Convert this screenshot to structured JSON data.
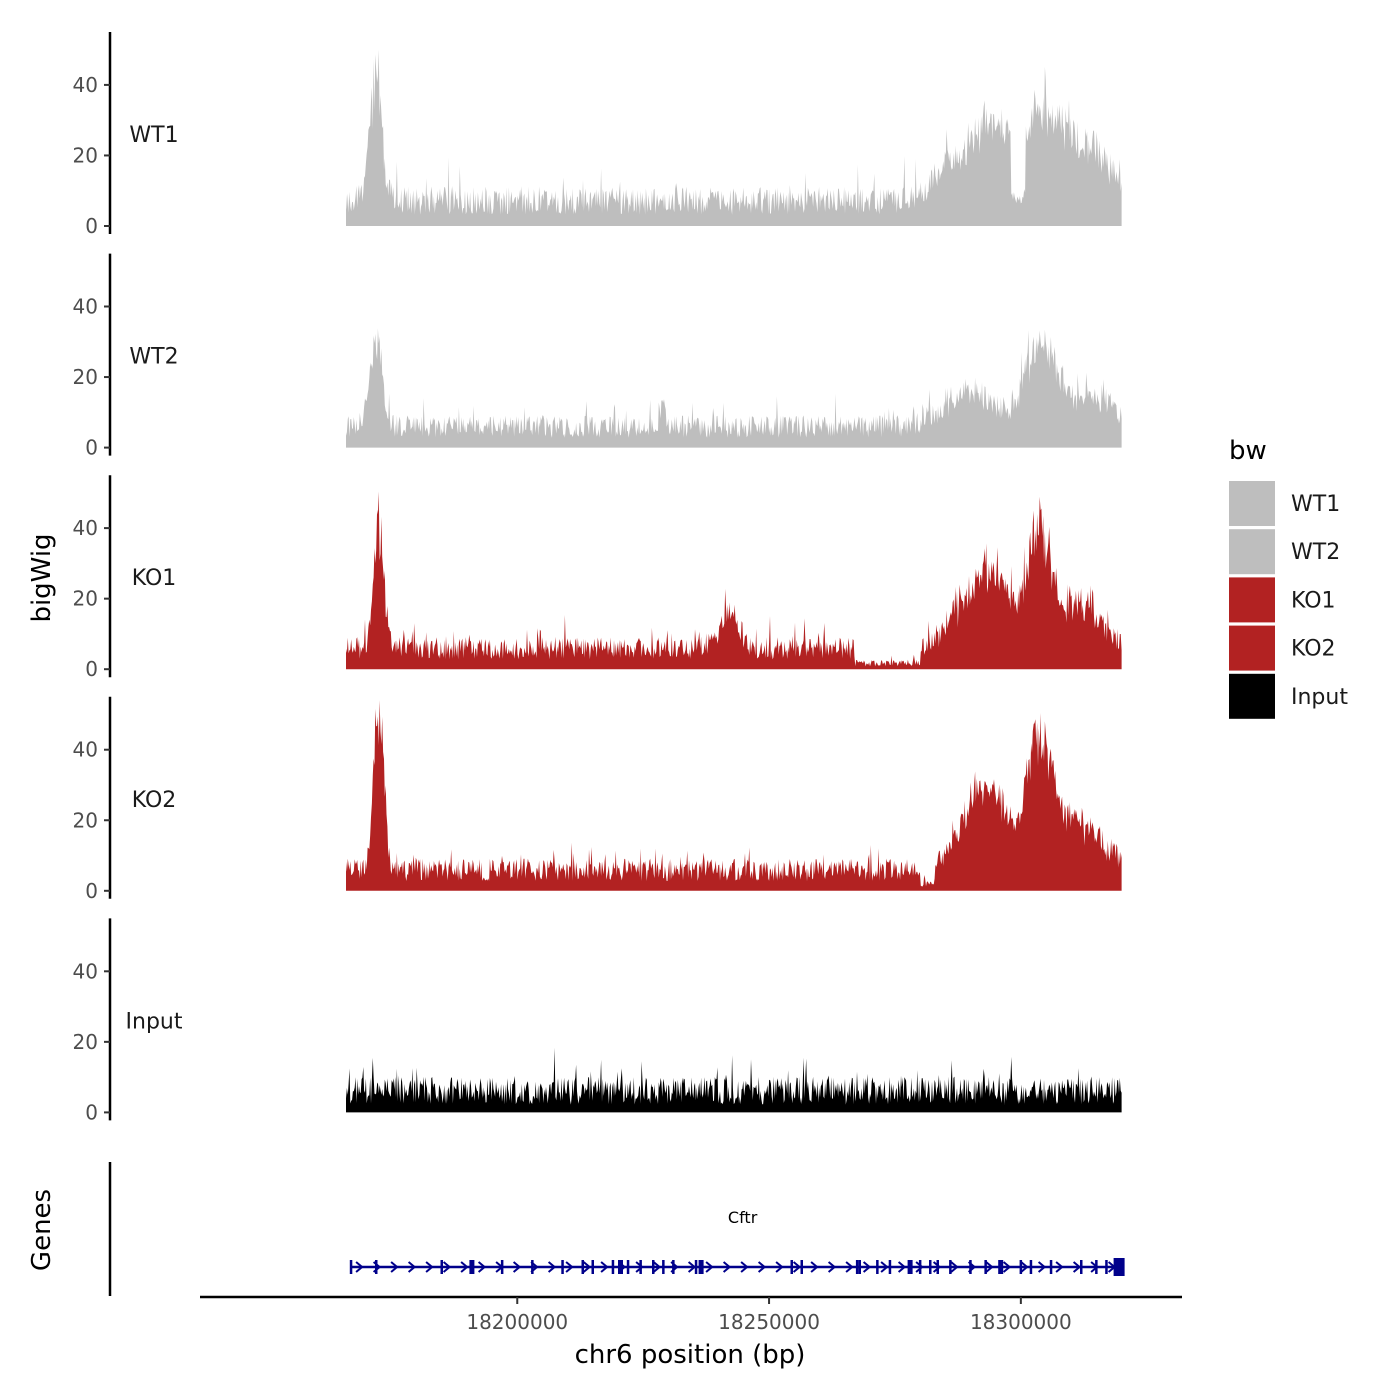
{
  "chart_data": {
    "type": "area",
    "x_axis": {
      "label": "chr6 position (bp)",
      "range": [
        18137000,
        18332000
      ],
      "data_range": [
        18166000,
        18320000
      ],
      "ticks": [
        18200000,
        18250000,
        18300000
      ],
      "tick_labels": [
        "18200000",
        "18250000",
        "18300000"
      ]
    },
    "y_axis": {
      "label": "bigWig",
      "range": [
        0,
        55
      ],
      "ticks": [
        0,
        20,
        40
      ],
      "tick_labels": [
        "0",
        "20",
        "40"
      ]
    },
    "series": [
      {
        "name": "WT1",
        "color": "#bebebe",
        "baseline": 6,
        "noise": 5,
        "profile": [
          {
            "pos": 18172000,
            "height": 35,
            "width": 1200
          },
          {
            "pos": 18287000,
            "height": 12,
            "width": 4000
          },
          {
            "pos": 18294000,
            "height": 18,
            "width": 3000
          },
          {
            "pos": 18304000,
            "height": 24,
            "width": 5000
          },
          {
            "pos": 18314000,
            "height": 12,
            "width": 5000
          }
        ],
        "dips": [
          {
            "from": 18298000,
            "to": 18301000
          }
        ]
      },
      {
        "name": "WT2",
        "color": "#bebebe",
        "baseline": 5,
        "noise": 4,
        "profile": [
          {
            "pos": 18172000,
            "height": 24,
            "width": 1200
          },
          {
            "pos": 18229000,
            "height": 8,
            "width": 500
          },
          {
            "pos": 18290000,
            "height": 10,
            "width": 5000
          },
          {
            "pos": 18304000,
            "height": 22,
            "width": 3000
          },
          {
            "pos": 18314000,
            "height": 8,
            "width": 5000
          }
        ],
        "dips": []
      },
      {
        "name": "KO1",
        "color": "#b22222",
        "baseline": 5,
        "noise": 4,
        "profile": [
          {
            "pos": 18172500,
            "height": 34,
            "width": 1000
          },
          {
            "pos": 18242000,
            "height": 10,
            "width": 2000
          },
          {
            "pos": 18290000,
            "height": 14,
            "width": 3500
          },
          {
            "pos": 18295000,
            "height": 18,
            "width": 2500
          },
          {
            "pos": 18303500,
            "height": 33,
            "width": 2500
          },
          {
            "pos": 18312000,
            "height": 12,
            "width": 4000
          }
        ],
        "dips": [
          {
            "from": 18267000,
            "to": 18280000
          }
        ]
      },
      {
        "name": "KO2",
        "color": "#b22222",
        "baseline": 5,
        "noise": 4,
        "profile": [
          {
            "pos": 18172500,
            "height": 47,
            "width": 1000
          },
          {
            "pos": 18291000,
            "height": 16,
            "width": 4000
          },
          {
            "pos": 18295000,
            "height": 12,
            "width": 3000
          },
          {
            "pos": 18303500,
            "height": 35,
            "width": 2500
          },
          {
            "pos": 18311000,
            "height": 14,
            "width": 5000
          }
        ],
        "dips": [
          {
            "from": 18280000,
            "to": 18283000
          }
        ]
      },
      {
        "name": "Input",
        "color": "#000000",
        "baseline": 5,
        "noise": 5,
        "profile": [],
        "dips": []
      }
    ],
    "legend": {
      "title": "bw",
      "placement": "right",
      "entries": [
        {
          "label": "WT1",
          "color": "#bebebe"
        },
        {
          "label": "WT2",
          "color": "#bebebe"
        },
        {
          "label": "KO1",
          "color": "#b22222"
        },
        {
          "label": "KO2",
          "color": "#b22222"
        },
        {
          "label": "Input",
          "color": "#000000"
        }
      ]
    },
    "genes_track": {
      "label": "Genes",
      "color": "#00008b",
      "genes": [
        {
          "name": "Cftr",
          "start": 18167000,
          "end": 18320500,
          "strand": "+"
        }
      ],
      "exons": [
        18167000,
        18172000,
        18185000,
        18191000,
        18197000,
        18203000,
        18209000,
        18213000,
        18215000,
        18219000,
        18220500,
        18222000,
        18224500,
        18227000,
        18229000,
        18231000,
        18235500,
        18236500,
        18254500,
        18256500,
        18267500,
        18268000,
        18271500,
        18274000,
        18278000,
        18280000,
        18282000,
        18283500,
        18286000,
        18290000,
        18293000,
        18296000,
        18300000,
        18302000,
        18306000,
        18312000,
        18315000,
        18317000,
        18319500
      ]
    }
  }
}
